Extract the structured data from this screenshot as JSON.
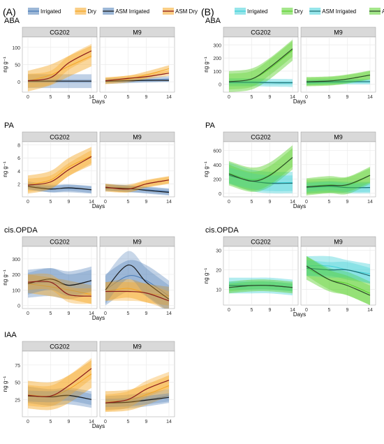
{
  "colors": {
    "blue": "#4a7bb7",
    "orange": "#f5a623",
    "cyan": "#3fd0d8",
    "green": "#5ad12c",
    "dark_navy": "#1a2230",
    "dark_red": "#8b1a1a",
    "dark_black": "#1a1a1a",
    "dark_green": "#2e4a2a",
    "strip": "#d9d9d9",
    "grid": "#ebebeb"
  },
  "chart_data": [
    {
      "panel": "A",
      "type": "line",
      "hormone": "ABA",
      "facets": [
        "CG202",
        "M9"
      ],
      "xlabel": "Days",
      "ylabel": "ng g⁻¹",
      "xticks": [
        0,
        5,
        9,
        14
      ],
      "ylim": [
        -30,
        130
      ],
      "yticks": [
        0,
        50,
        100
      ],
      "legend": [
        "Irrigated",
        "Dry",
        "ASM Irrigated",
        "ASM Dry"
      ],
      "series": {
        "CG202": {
          "irr": {
            "x": [
              0,
              5,
              9,
              14
            ],
            "y": [
              2,
              2,
              2,
              2
            ],
            "band": 20
          },
          "dry": {
            "x": [
              0,
              5,
              9,
              14
            ],
            "y": [
              2,
              20,
              45,
              75
            ],
            "band": 30
          },
          "asm_irr": {
            "x": [
              0,
              5,
              9,
              14
            ],
            "y": [
              2,
              2,
              2,
              2
            ],
            "band": 5
          },
          "asm_dry": {
            "x": [
              0,
              5,
              9,
              14
            ],
            "y": [
              3,
              12,
              55,
              90
            ],
            "band": 20
          }
        },
        "M9": {
          "irr": {
            "x": [
              0,
              5,
              9,
              14
            ],
            "y": [
              2,
              4,
              6,
              8
            ],
            "band": 8
          },
          "dry": {
            "x": [
              0,
              5,
              9,
              14
            ],
            "y": [
              3,
              8,
              20,
              38
            ],
            "band": 10
          },
          "asm_irr": {
            "x": [
              0,
              5,
              9,
              14
            ],
            "y": [
              2,
              3,
              4,
              4
            ],
            "band": 4
          },
          "asm_dry": {
            "x": [
              0,
              5,
              9,
              14
            ],
            "y": [
              3,
              10,
              15,
              25
            ],
            "band": 8
          }
        }
      }
    },
    {
      "panel": "A",
      "type": "line",
      "hormone": "PA",
      "facets": [
        "CG202",
        "M9"
      ],
      "xlabel": "Days",
      "ylabel": "ng g⁻¹",
      "xticks": [
        0,
        5,
        9,
        14
      ],
      "ylim": [
        0,
        8.5
      ],
      "yticks": [
        2,
        4,
        6,
        8
      ],
      "series": {
        "CG202": {
          "irr": {
            "x": [
              0,
              5,
              9,
              14
            ],
            "y": [
              1.8,
              1.3,
              1.3,
              1.1
            ],
            "band": 0.6
          },
          "dry": {
            "x": [
              0,
              5,
              9,
              14
            ],
            "y": [
              1.9,
              2.6,
              4.6,
              6.3
            ],
            "band": 1.4
          },
          "asm_irr": {
            "x": [
              0,
              5,
              9,
              14
            ],
            "y": [
              1.6,
              1.2,
              1.4,
              1.1
            ],
            "band": 0.5
          },
          "asm_dry": {
            "x": [
              0,
              5,
              9,
              14
            ],
            "y": [
              1.8,
              2.3,
              4.2,
              6.2
            ],
            "band": 1.0
          }
        },
        "M9": {
          "irr": {
            "x": [
              0,
              5,
              9,
              14
            ],
            "y": [
              1.5,
              1.2,
              1.1,
              0.8
            ],
            "band": 0.5
          },
          "dry": {
            "x": [
              0,
              5,
              9,
              14
            ],
            "y": [
              1.4,
              1.3,
              2.0,
              2.6
            ],
            "band": 0.6
          },
          "asm_irr": {
            "x": [
              0,
              5,
              9,
              14
            ],
            "y": [
              1.4,
              1.3,
              1.0,
              0.7
            ],
            "band": 0.5
          },
          "asm_dry": {
            "x": [
              0,
              5,
              9,
              14
            ],
            "y": [
              1.5,
              1.2,
              2.0,
              2.6
            ],
            "band": 0.5
          }
        }
      }
    },
    {
      "panel": "A",
      "type": "line",
      "hormone": "cis.OPDA",
      "facets": [
        "CG202",
        "M9"
      ],
      "xlabel": "Days",
      "ylabel": "ng g⁻¹",
      "xticks": [
        0,
        5,
        9,
        14
      ],
      "ylim": [
        -20,
        380
      ],
      "yticks": [
        0,
        100,
        200,
        300
      ],
      "series": {
        "CG202": {
          "irr": {
            "x": [
              0,
              5,
              9,
              14
            ],
            "y": [
              140,
              150,
              130,
              160
            ],
            "band": 90
          },
          "dry": {
            "x": [
              0,
              5,
              9,
              14
            ],
            "y": [
              140,
              120,
              100,
              70
            ],
            "band": 60
          },
          "asm_irr": {
            "x": [
              0,
              5,
              9,
              14
            ],
            "y": [
              140,
              170,
              130,
              160
            ],
            "band": 70
          },
          "asm_dry": {
            "x": [
              0,
              5,
              9,
              14
            ],
            "y": [
              150,
              150,
              70,
              60
            ],
            "band": 50
          }
        },
        "M9": {
          "irr": {
            "x": [
              0,
              5,
              9,
              14
            ],
            "y": [
              100,
              190,
              160,
              60
            ],
            "band": 100
          },
          "dry": {
            "x": [
              0,
              5,
              9,
              14
            ],
            "y": [
              90,
              110,
              80,
              60
            ],
            "band": 60
          },
          "asm_irr": {
            "x": [
              0,
              5,
              9,
              14
            ],
            "y": [
              100,
              260,
              150,
              40
            ],
            "band": 90
          },
          "asm_dry": {
            "x": [
              0,
              5,
              9,
              14
            ],
            "y": [
              90,
              90,
              80,
              30
            ],
            "band": 60
          }
        }
      }
    },
    {
      "panel": "A",
      "type": "line",
      "hormone": "IAA",
      "facets": [
        "CG202",
        "M9"
      ],
      "xlabel": "Days",
      "ylabel": "ng g⁻¹",
      "xticks": [
        0,
        5,
        9,
        14
      ],
      "ylim": [
        0,
        95
      ],
      "yticks": [
        25,
        50,
        75
      ],
      "series": {
        "CG202": {
          "irr": {
            "x": [
              0,
              5,
              9,
              14
            ],
            "y": [
              32,
              28,
              30,
              25
            ],
            "band": 12
          },
          "dry": {
            "x": [
              0,
              5,
              9,
              14
            ],
            "y": [
              32,
              30,
              40,
              62
            ],
            "band": 20
          },
          "asm_irr": {
            "x": [
              0,
              5,
              9,
              14
            ],
            "y": [
              30,
              29,
              31,
              25
            ],
            "band": 8
          },
          "asm_dry": {
            "x": [
              0,
              5,
              9,
              14
            ],
            "y": [
              31,
              30,
              45,
              70
            ],
            "band": 15
          }
        },
        "M9": {
          "irr": {
            "x": [
              0,
              5,
              9,
              14
            ],
            "y": [
              20,
              22,
              25,
              30
            ],
            "band": 10
          },
          "dry": {
            "x": [
              0,
              5,
              9,
              14
            ],
            "y": [
              22,
              24,
              32,
              45
            ],
            "band": 15
          },
          "asm_irr": {
            "x": [
              0,
              5,
              9,
              14
            ],
            "y": [
              20,
              21,
              24,
              28
            ],
            "band": 6
          },
          "asm_dry": {
            "x": [
              0,
              5,
              9,
              14
            ],
            "y": [
              20,
              25,
              40,
              53
            ],
            "band": 12
          }
        }
      }
    },
    {
      "panel": "B",
      "type": "line",
      "hormone": "ABA",
      "facets": [
        "CG202",
        "M9"
      ],
      "xlabel": "Days",
      "ylabel": "ng g⁻¹",
      "xticks": [
        0,
        5,
        9,
        14
      ],
      "ylim": [
        -60,
        360
      ],
      "yticks": [
        0,
        100,
        200,
        300
      ],
      "legend": [
        "Irrigated",
        "Dry",
        "ASM Irrigated",
        "ASM Dry"
      ],
      "series": {
        "CG202": {
          "irr": {
            "x": [
              0,
              5,
              9,
              14
            ],
            "y": [
              15,
              15,
              12,
              10
            ],
            "band": 30
          },
          "dry": {
            "x": [
              0,
              5,
              9,
              14
            ],
            "y": [
              20,
              40,
              120,
              260
            ],
            "band": 80
          },
          "asm_irr": {
            "x": [
              0,
              5,
              9,
              14
            ],
            "y": [
              15,
              15,
              12,
              12
            ],
            "band": 12
          },
          "asm_dry": {
            "x": [
              0,
              5,
              9,
              14
            ],
            "y": [
              20,
              40,
              130,
              270
            ],
            "band": 60
          }
        },
        "M9": {
          "irr": {
            "x": [
              0,
              5,
              9,
              14
            ],
            "y": [
              15,
              20,
              20,
              20
            ],
            "band": 20
          },
          "dry": {
            "x": [
              0,
              5,
              9,
              14
            ],
            "y": [
              20,
              25,
              40,
              70
            ],
            "band": 35
          },
          "asm_irr": {
            "x": [
              0,
              5,
              9,
              14
            ],
            "y": [
              15,
              18,
              20,
              20
            ],
            "band": 12
          },
          "asm_dry": {
            "x": [
              0,
              5,
              9,
              14
            ],
            "y": [
              20,
              25,
              40,
              70
            ],
            "band": 30
          }
        }
      }
    },
    {
      "panel": "B",
      "type": "line",
      "hormone": "PA",
      "facets": [
        "CG202",
        "M9"
      ],
      "xlabel": "Days",
      "ylabel": "ng g⁻¹",
      "xticks": [
        0,
        5,
        9,
        14
      ],
      "ylim": [
        -50,
        720
      ],
      "yticks": [
        0,
        200,
        400,
        600
      ],
      "series": {
        "CG202": {
          "irr": {
            "x": [
              0,
              5,
              9,
              14
            ],
            "y": [
              280,
              180,
              150,
              150
            ],
            "band": 150
          },
          "dry": {
            "x": [
              0,
              5,
              9,
              14
            ],
            "y": [
              280,
              190,
              260,
              500
            ],
            "band": 170
          },
          "asm_irr": {
            "x": [
              0,
              5,
              9,
              14
            ],
            "y": [
              250,
              170,
              140,
              140
            ],
            "band": 110
          },
          "asm_dry": {
            "x": [
              0,
              5,
              9,
              14
            ],
            "y": [
              270,
              170,
              250,
              500
            ],
            "band": 130
          }
        },
        "M9": {
          "irr": {
            "x": [
              0,
              5,
              9,
              14
            ],
            "y": [
              80,
              90,
              80,
              80
            ],
            "band": 80
          },
          "dry": {
            "x": [
              0,
              5,
              9,
              14
            ],
            "y": [
              90,
              120,
              110,
              250
            ],
            "band": 120
          },
          "asm_irr": {
            "x": [
              0,
              5,
              9,
              14
            ],
            "y": [
              80,
              100,
              80,
              80
            ],
            "band": 60
          },
          "asm_dry": {
            "x": [
              0,
              5,
              9,
              14
            ],
            "y": [
              90,
              110,
              120,
              250
            ],
            "band": 100
          }
        }
      }
    },
    {
      "panel": "B",
      "type": "line",
      "hormone": "cis.OPDA",
      "facets": [
        "CG202",
        "M9"
      ],
      "xlabel": "Days",
      "ylabel": "ng g⁻¹",
      "xticks": [
        0,
        5,
        9,
        14
      ],
      "ylim": [
        2,
        32
      ],
      "yticks": [
        10,
        20,
        30
      ],
      "series": {
        "CG202": {
          "irr": {
            "x": [
              0,
              5,
              9,
              14
            ],
            "y": [
              12,
              12,
              12,
              11
            ],
            "band": 4
          },
          "dry": {
            "x": [
              0,
              5,
              9,
              14
            ],
            "y": [
              11,
              12,
              12,
              11
            ],
            "band": 3
          },
          "asm_irr": {
            "x": [
              0,
              5,
              9,
              14
            ],
            "y": [
              12,
              12,
              12,
              11
            ],
            "band": 2
          },
          "asm_dry": {
            "x": [
              0,
              5,
              9,
              14
            ],
            "y": [
              11,
              12,
              12,
              11
            ],
            "band": 2
          }
        },
        "M9": {
          "irr": {
            "x": [
              0,
              5,
              9,
              14
            ],
            "y": [
              22,
              22,
              20,
              18
            ],
            "band": 5
          },
          "dry": {
            "x": [
              0,
              5,
              9,
              14
            ],
            "y": [
              21,
              15,
              13,
              8
            ],
            "band": 6
          },
          "asm_irr": {
            "x": [
              0,
              5,
              9,
              14
            ],
            "y": [
              21,
              20,
              20,
              17
            ],
            "band": 4
          },
          "asm_dry": {
            "x": [
              0,
              5,
              9,
              14
            ],
            "y": [
              22,
              15,
              12,
              7
            ],
            "band": 5
          }
        }
      }
    }
  ],
  "labels": {
    "A": "(A)",
    "B": "(B)",
    "legend_A": [
      "Irrigated",
      "Dry",
      "ASM Irrigated",
      "ASM Dry"
    ],
    "legend_B": [
      "Irrigated",
      "Dry",
      "ASM Irrigated",
      "ASM Dry"
    ]
  }
}
